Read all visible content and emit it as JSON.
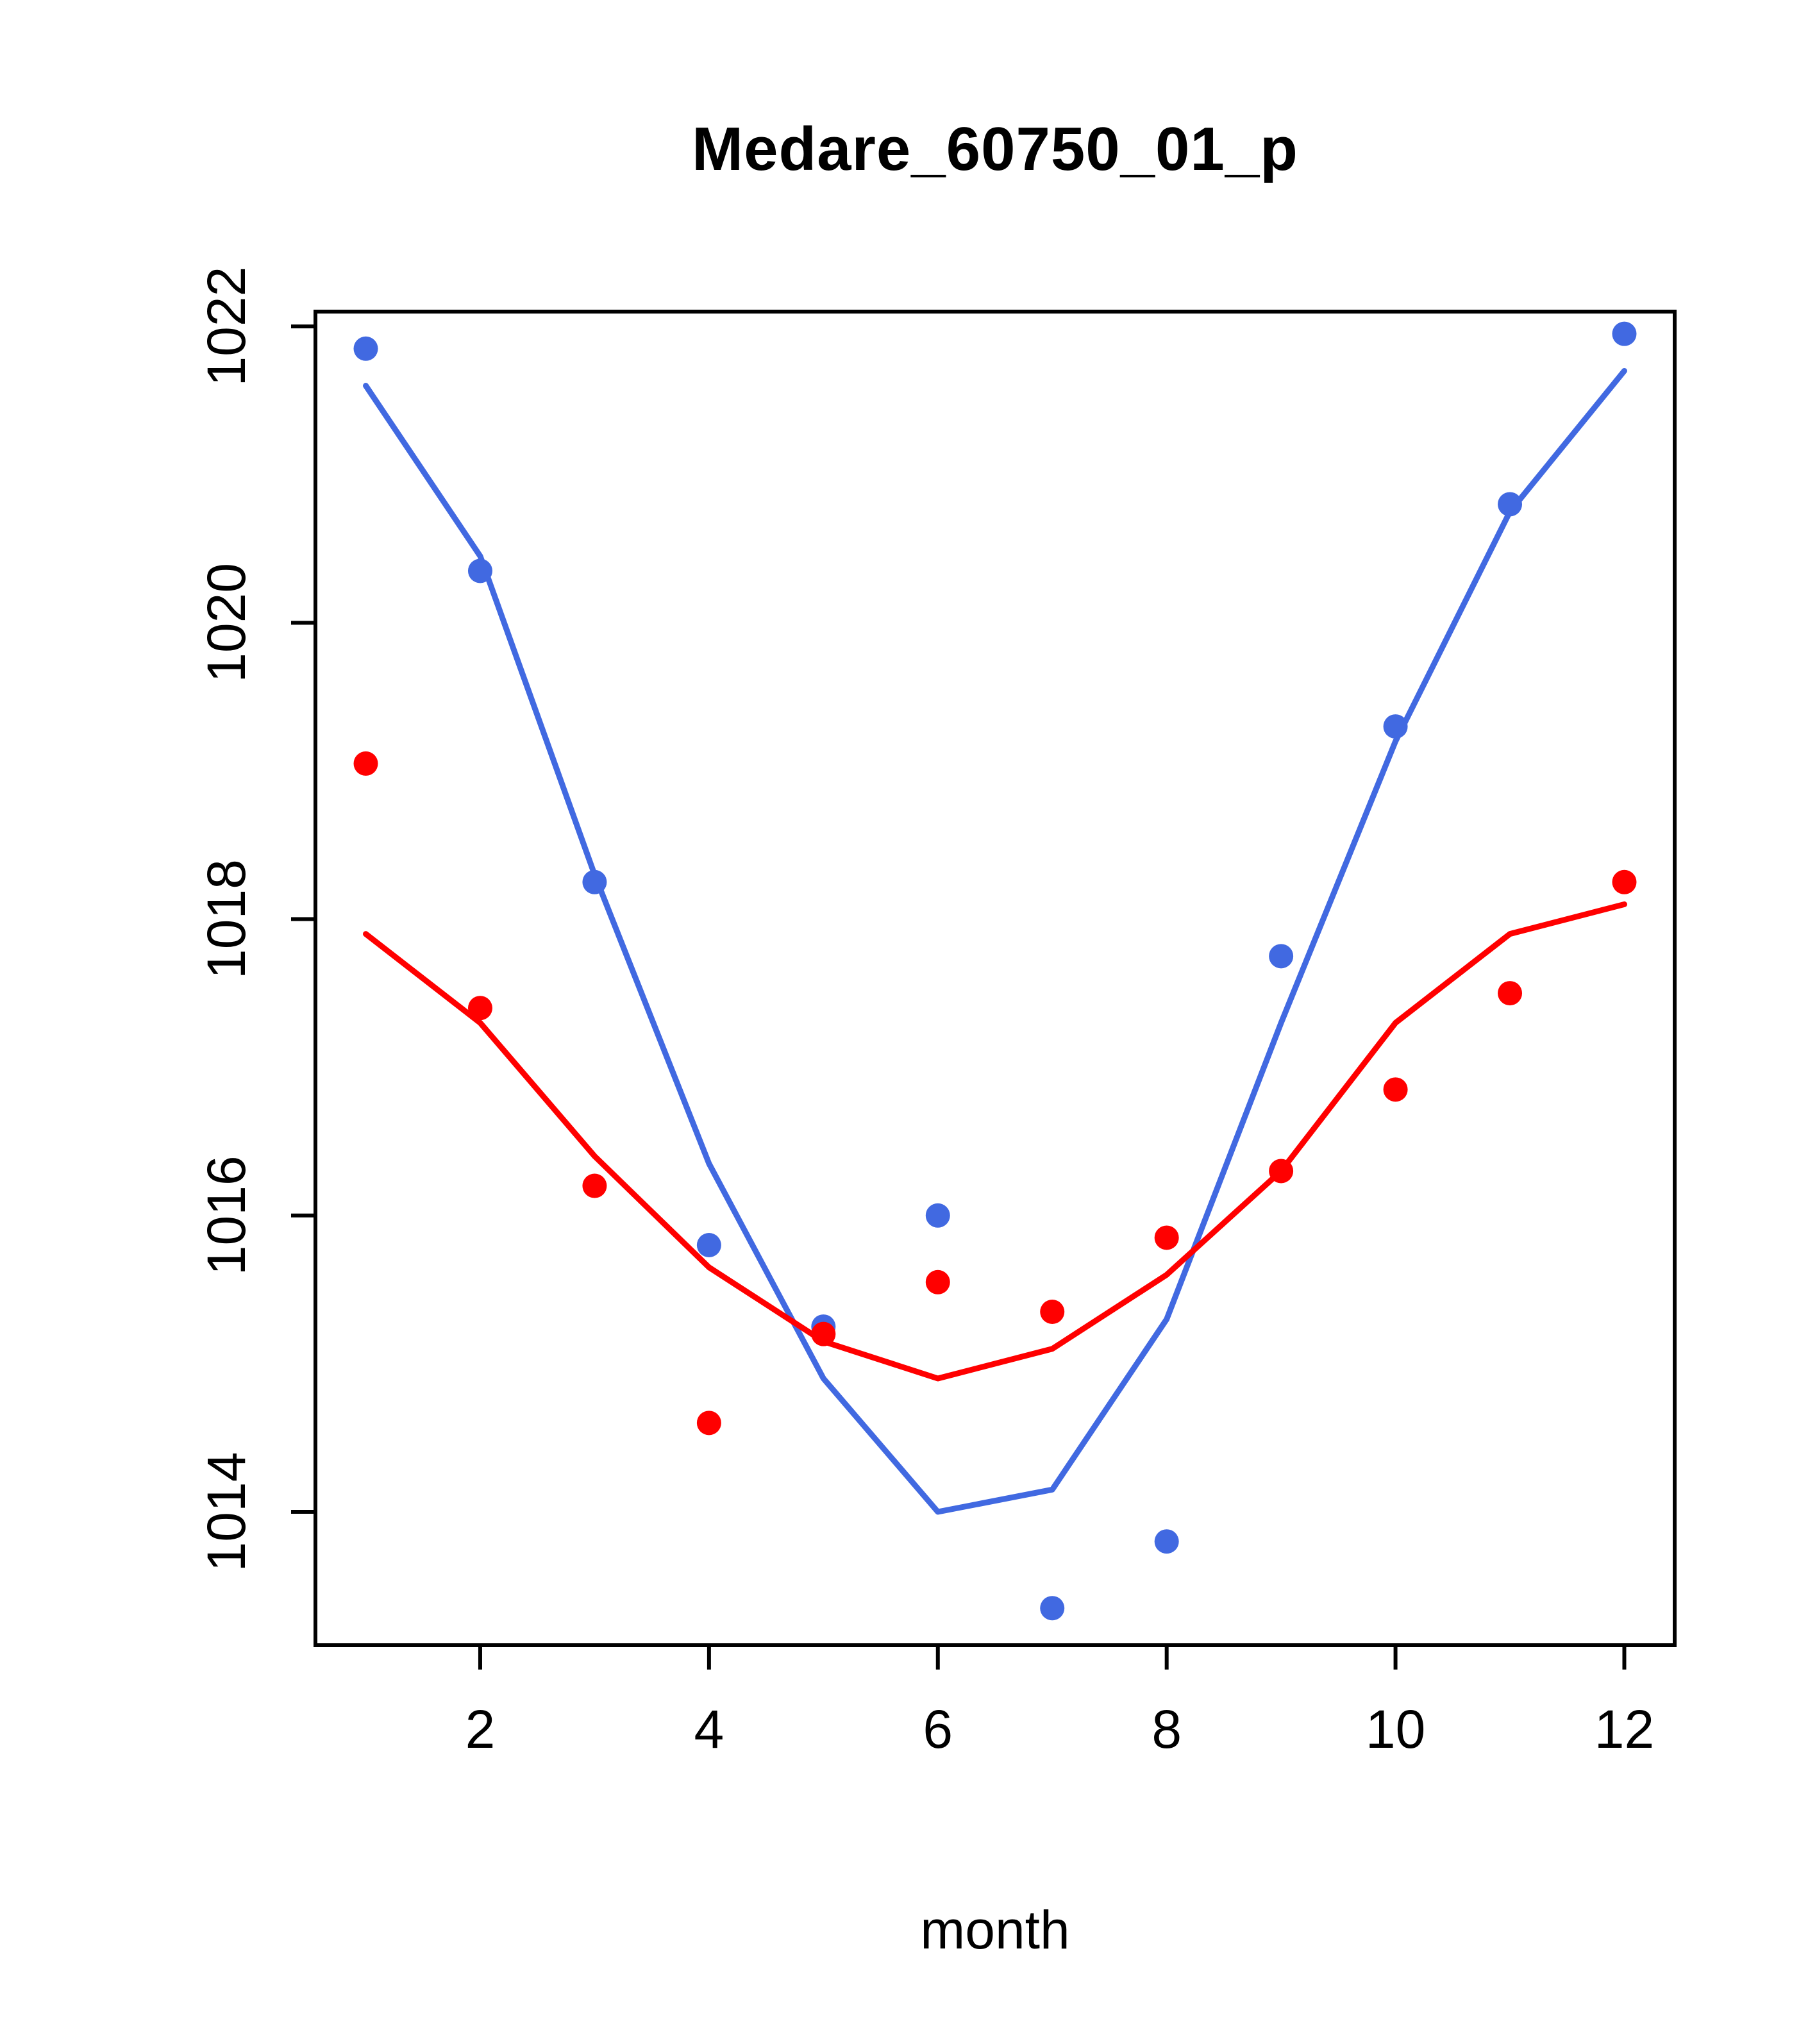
{
  "page": {
    "background": "#ffffff",
    "text_color": "#000000",
    "axis_color": "#000000"
  },
  "chart_data": {
    "type": "scatter",
    "subtype": "scatter-with-smooth-lines",
    "title": "Medare_60750_01_p",
    "xlabel": "month",
    "ylabel": "",
    "grid": false,
    "legend": "none",
    "x": [
      1,
      2,
      3,
      4,
      5,
      6,
      7,
      8,
      9,
      10,
      11,
      12
    ],
    "xlim": [
      0.56,
      12.44
    ],
    "ylim": [
      1013.1,
      1022.1
    ],
    "xticks": [
      2,
      4,
      6,
      8,
      10,
      12
    ],
    "yticks": [
      1014,
      1016,
      1018,
      1020,
      1022
    ],
    "series": [
      {
        "name": "blue-points",
        "kind": "scatter",
        "color": "#4169E1",
        "values": [
          1021.85,
          1020.35,
          1018.25,
          1015.8,
          1015.25,
          1016.0,
          1013.35,
          1013.8,
          1017.75,
          1019.3,
          1020.8,
          1021.95
        ]
      },
      {
        "name": "blue-line",
        "kind": "line",
        "color": "#4169E1",
        "values": [
          1021.6,
          1020.45,
          1018.3,
          1016.35,
          1014.9,
          1014.0,
          1014.15,
          1015.3,
          1017.3,
          1019.2,
          1020.75,
          1021.7
        ]
      },
      {
        "name": "red-points",
        "kind": "scatter",
        "color": "#FF0000",
        "values": [
          1019.05,
          1017.4,
          1016.2,
          1014.6,
          1015.2,
          1015.55,
          1015.35,
          1015.85,
          1016.3,
          1016.85,
          1017.5,
          1018.25
        ]
      },
      {
        "name": "red-line",
        "kind": "line",
        "color": "#FF0000",
        "values": [
          1017.9,
          1017.3,
          1016.4,
          1015.65,
          1015.15,
          1014.9,
          1015.1,
          1015.6,
          1016.3,
          1017.3,
          1017.9,
          1018.1
        ]
      }
    ]
  }
}
